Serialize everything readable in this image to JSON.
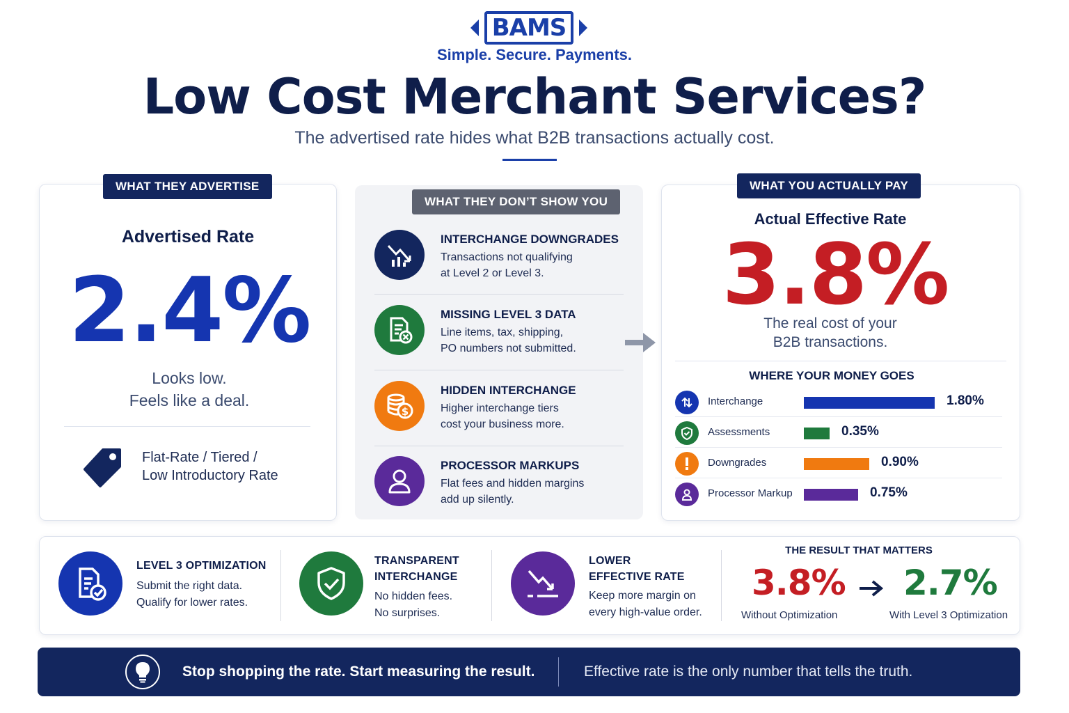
{
  "brand": {
    "logo_text": "BAMS",
    "tagline": "Simple. Secure. Payments.",
    "primary_color": "#1a3fa8",
    "navy_color": "#13265e"
  },
  "header": {
    "title": "Low Cost Merchant Services?",
    "subtitle": "The advertised rate hides what B2B transactions actually cost."
  },
  "advertised": {
    "tag": "WHAT THEY ADVERTISE",
    "label": "Advertised Rate",
    "rate": "2.4%",
    "line1": "Looks low.",
    "line2": "Feels like a deal.",
    "pricing_line1": "Flat-Rate / Tiered /",
    "pricing_line2": "Low Introductory Rate",
    "icon": "price-tag-icon"
  },
  "hidden": {
    "tag": "WHAT THEY DON’T SHOW YOU",
    "items": [
      {
        "title": "INTERCHANGE DOWNGRADES",
        "line1": "Transactions not qualifying",
        "line2": "at Level 2 or Level 3.",
        "icon": "downtrend-chart-icon",
        "color": "#13265e"
      },
      {
        "title": "MISSING LEVEL 3 DATA",
        "line1": "Line items, tax, shipping,",
        "line2": "PO numbers not submitted.",
        "icon": "document-missing-icon",
        "color": "#1f7a3d"
      },
      {
        "title": "HIDDEN INTERCHANGE",
        "line1": "Higher interchange tiers",
        "line2": "cost your business more.",
        "icon": "coins-dollar-icon",
        "color": "#f07a10"
      },
      {
        "title": "PROCESSOR MARKUPS",
        "line1": "Flat fees and hidden margins",
        "line2": "add up silently.",
        "icon": "user-icon",
        "color": "#5a2a9a"
      }
    ]
  },
  "actual": {
    "tag": "WHAT YOU ACTUALLY PAY",
    "label": "Actual Effective Rate",
    "rate": "3.8%",
    "line1": "The real cost of your",
    "line2": "B2B transactions.",
    "breakdown_title": "WHERE YOUR MONEY GOES"
  },
  "chart_data": {
    "type": "bar",
    "title": "WHERE YOUR MONEY GOES",
    "categories": [
      "Interchange",
      "Assessments",
      "Downgrades",
      "Processor Markup"
    ],
    "values": [
      1.8,
      0.35,
      0.9,
      0.75
    ],
    "value_labels": [
      "1.80%",
      "0.35%",
      "0.90%",
      "0.75%"
    ],
    "colors": [
      "#1535b0",
      "#1f7a3d",
      "#f07a10",
      "#5a2a9a"
    ],
    "icons": [
      "arrows-exchange-icon",
      "shield-check-icon",
      "exclamation-icon",
      "user-icon"
    ],
    "orientation": "horizontal"
  },
  "solutions": [
    {
      "title1": "LEVEL 3 OPTIMIZATION",
      "title2": "",
      "line1": "Submit the right data.",
      "line2": "Qualify for lower rates.",
      "icon": "document-check-icon",
      "color": "#1535b0"
    },
    {
      "title1": "TRANSPARENT",
      "title2": "INTERCHANGE",
      "line1": "No hidden fees.",
      "line2": "No surprises.",
      "icon": "shield-check-icon",
      "color": "#1f7a3d"
    },
    {
      "title1": "LOWER",
      "title2": "EFFECTIVE RATE",
      "line1": "Keep more margin on",
      "line2": "every high-value order.",
      "icon": "trend-down-icon",
      "color": "#5a2a9a"
    }
  ],
  "result": {
    "title": "THE RESULT THAT MATTERS",
    "before": "3.8%",
    "before_caption": "Without Optimization",
    "after": "2.7%",
    "after_caption": "With Level 3 Optimization"
  },
  "footer": {
    "main": "Stop shopping the rate. Start measuring the result.",
    "sub": "Effective rate is the only number that tells the truth.",
    "icon": "lightbulb-icon"
  }
}
